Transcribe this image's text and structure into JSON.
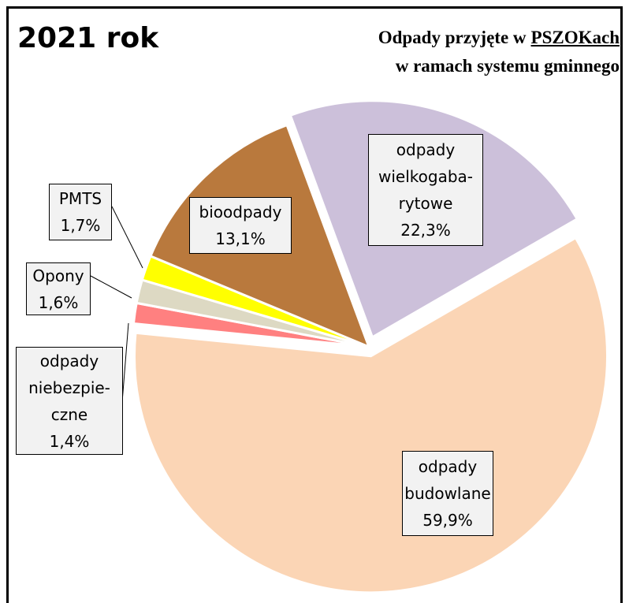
{
  "chart_data": {
    "type": "pie",
    "title": "2021 rok",
    "subtitle": {
      "line1": "Odpady przyjęte w",
      "line1_underlined": "PSZOKach",
      "line2": "w ramach systemu gminnego"
    },
    "categories": [
      "odpady\nbudowlane",
      "odpady\nniebezpie-\nczne",
      "Opony",
      "PMTS",
      "bioodpady",
      "odpady\nwielkogaba-\nrytowe"
    ],
    "values": [
      59.9,
      1.4,
      1.6,
      1.7,
      13.1,
      22.3
    ],
    "value_labels": [
      "59,9%",
      "1,4%",
      "1,6%",
      "1,7%",
      "13,1%",
      "22,3%"
    ],
    "colors": [
      "#fbd5b5",
      "#ff8080",
      "#ddd9c3",
      "#ffff00",
      "#b9793d",
      "#ccc0da"
    ]
  }
}
